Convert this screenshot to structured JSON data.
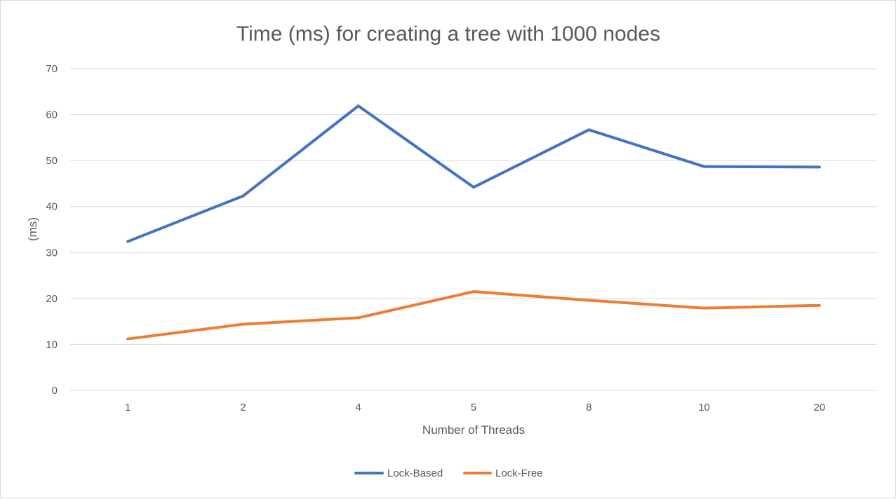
{
  "chart_data": {
    "type": "line",
    "title": "Time (ms) for creating a tree with 1000 nodes",
    "xlabel": "Number of Threads",
    "ylabel": "(ms)",
    "categories": [
      "1",
      "2",
      "4",
      "5",
      "8",
      "10",
      "20"
    ],
    "ylim": [
      0,
      70
    ],
    "yticks": [
      0,
      10,
      20,
      30,
      40,
      50,
      60,
      70
    ],
    "grid": true,
    "legend_position": "bottom",
    "series": [
      {
        "name": "Lock-Based",
        "color": "#4472c4",
        "values": [
          32.4,
          42.3,
          61.9,
          44.2,
          56.7,
          48.7,
          48.6
        ]
      },
      {
        "name": "Lock-Free",
        "color": "#ed7d31",
        "values": [
          11.2,
          14.4,
          15.8,
          21.5,
          19.6,
          17.9,
          18.5
        ]
      }
    ]
  }
}
